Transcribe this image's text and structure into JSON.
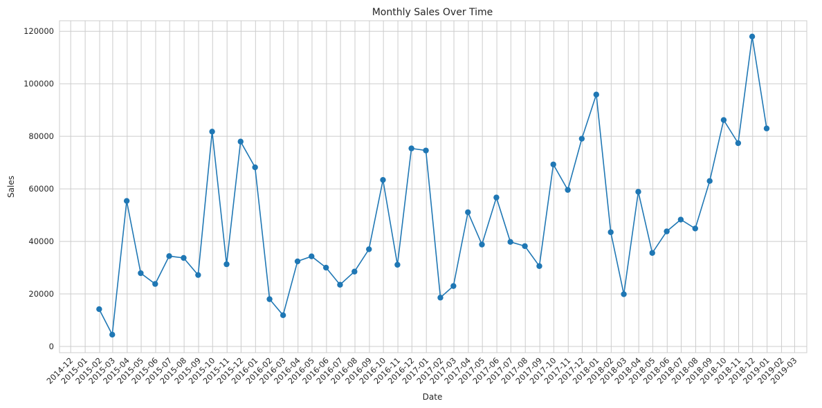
{
  "chart_data": {
    "type": "line",
    "title": "Monthly Sales Over Time",
    "xlabel": "Date",
    "ylabel": "Sales",
    "grid": true,
    "marker": "circle",
    "color": "#1f77b4",
    "xlim": [
      "2014-12",
      "2019-03"
    ],
    "ylim": [
      0,
      124000
    ],
    "yticks": [
      0,
      20000,
      40000,
      60000,
      80000,
      100000,
      120000
    ],
    "xticks": [
      "2014-12",
      "2015-01",
      "2015-02",
      "2015-03",
      "2015-04",
      "2015-05",
      "2015-06",
      "2015-07",
      "2015-08",
      "2015-09",
      "2015-10",
      "2015-11",
      "2015-12",
      "2016-01",
      "2016-02",
      "2016-03",
      "2016-04",
      "2016-05",
      "2016-06",
      "2016-07",
      "2016-08",
      "2016-09",
      "2016-10",
      "2016-11",
      "2016-12",
      "2017-01",
      "2017-02",
      "2017-03",
      "2017-04",
      "2017-05",
      "2017-06",
      "2017-07",
      "2017-08",
      "2017-09",
      "2017-10",
      "2017-11",
      "2017-12",
      "2018-01",
      "2018-02",
      "2018-03",
      "2018-04",
      "2018-05",
      "2018-06",
      "2018-07",
      "2018-08",
      "2018-09",
      "2018-10",
      "2018-11",
      "2018-12",
      "2019-01",
      "2019-02",
      "2019-03"
    ],
    "x": [
      "2015-01-31",
      "2015-02-28",
      "2015-03-31",
      "2015-04-30",
      "2015-05-31",
      "2015-06-30",
      "2015-07-31",
      "2015-08-31",
      "2015-09-30",
      "2015-10-31",
      "2015-11-30",
      "2015-12-31",
      "2016-01-31",
      "2016-02-29",
      "2016-03-31",
      "2016-04-30",
      "2016-05-31",
      "2016-06-30",
      "2016-07-31",
      "2016-08-31",
      "2016-09-30",
      "2016-10-31",
      "2016-11-30",
      "2016-12-31",
      "2017-01-31",
      "2017-02-28",
      "2017-03-31",
      "2017-04-30",
      "2017-05-31",
      "2017-06-30",
      "2017-07-31",
      "2017-08-31",
      "2017-09-30",
      "2017-10-31",
      "2017-11-30",
      "2017-12-31",
      "2018-01-31",
      "2018-02-28",
      "2018-03-31",
      "2018-04-30",
      "2018-05-31",
      "2018-06-30",
      "2018-07-31",
      "2018-08-31",
      "2018-09-30",
      "2018-10-31",
      "2018-11-30",
      "2018-12-31"
    ],
    "values": [
      14200,
      4500,
      55400,
      27900,
      23800,
      34400,
      33700,
      27200,
      81800,
      31300,
      78000,
      68200,
      18000,
      11900,
      32400,
      34300,
      30000,
      23500,
      28500,
      37000,
      63400,
      31100,
      75400,
      74600,
      18600,
      23000,
      51100,
      38800,
      56700,
      39800,
      38200,
      30600,
      69300,
      59600,
      79100,
      95900,
      43500,
      19900,
      58900,
      35600,
      43800,
      48300,
      44900,
      63000,
      86200,
      77400,
      118000,
      83000
    ]
  }
}
